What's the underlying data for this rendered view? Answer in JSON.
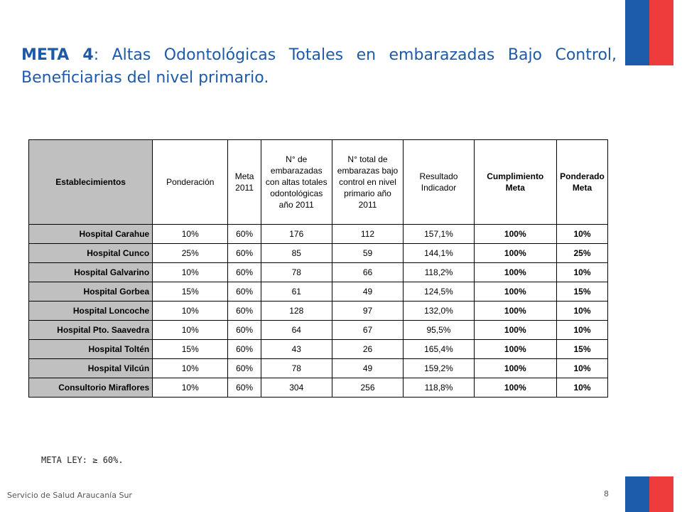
{
  "title": {
    "bold": "META 4",
    "rest": ": Altas Odontológicas Totales en embarazadas Bajo Control, Beneficiarias del nivel primario."
  },
  "table": {
    "headers": [
      "Establecimientos",
      "Ponderación",
      "Meta 2011",
      "N° de embarazadas con altas totales odontológicas año 2011",
      "N° total de embarazas bajo control en nivel primario año 2011",
      "Resultado Indicador",
      "Cumplimiento Meta",
      "Ponderado Meta"
    ],
    "rows": [
      [
        "Hospital Carahue",
        "10%",
        "60%",
        "176",
        "112",
        "157,1%",
        "100%",
        "10%"
      ],
      [
        "Hospital Cunco",
        "25%",
        "60%",
        "85",
        "59",
        "144,1%",
        "100%",
        "25%"
      ],
      [
        "Hospital Galvarino",
        "10%",
        "60%",
        "78",
        "66",
        "118,2%",
        "100%",
        "10%"
      ],
      [
        "Hospital Gorbea",
        "15%",
        "60%",
        "61",
        "49",
        "124,5%",
        "100%",
        "15%"
      ],
      [
        "Hospital Loncoche",
        "10%",
        "60%",
        "128",
        "97",
        "132,0%",
        "100%",
        "10%"
      ],
      [
        "Hospital Pto. Saavedra",
        "10%",
        "60%",
        "64",
        "67",
        "95,5%",
        "100%",
        "10%"
      ],
      [
        "Hospital Toltén",
        "15%",
        "60%",
        "43",
        "26",
        "165,4%",
        "100%",
        "15%"
      ],
      [
        "Hospital Vilcún",
        "10%",
        "60%",
        "78",
        "49",
        "159,2%",
        "100%",
        "10%"
      ],
      [
        "Consultorio Miraflores",
        "10%",
        "60%",
        "304",
        "256",
        "118,8%",
        "100%",
        "10%"
      ]
    ]
  },
  "meta_ley": "META LEY: ≥ 60%.",
  "footer": "Servicio de Salud Araucanía Sur",
  "page_number": "8",
  "colors": {
    "title": "#1f5aa8",
    "flag_blue": "#1d5ca8",
    "flag_red": "#ee3b3b",
    "row_header_bg": "#c0c0c0"
  }
}
